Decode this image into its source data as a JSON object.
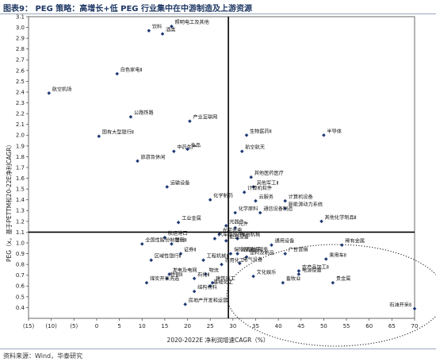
{
  "header": {
    "title": "图表9：  PEG 策略：高增长+低 PEG 行业集中在中游制造及上游资源"
  },
  "footer": {
    "source": "资料来源：Wind，华泰研究"
  },
  "colors": {
    "marker": "#1f3a73",
    "title": "#1f3864",
    "reference_lines": "#000000"
  },
  "chart_data": {
    "type": "scatter",
    "xlabel": "2020-2022E 净利润增速CAGR（%）",
    "ylabel": "PEG（x，基于PETTM和20-22E净利CAGR）",
    "xlim": [
      -15,
      70
    ],
    "ylim": [
      0.3,
      3.1
    ],
    "xticks": [
      "(15)",
      "(10)",
      "(5)",
      "0",
      "5",
      "10",
      "15",
      "20",
      "25",
      "30",
      "35",
      "40",
      "45",
      "50",
      "55",
      "60",
      "65",
      "70"
    ],
    "yticks": [
      "0.4",
      "0.5",
      "0.6",
      "0.7",
      "0.8",
      "0.9",
      "1.0",
      "1.1",
      "1.2",
      "1.3",
      "1.4",
      "1.5",
      "1.6",
      "1.7",
      "1.8",
      "1.9",
      "2.0",
      "2.1",
      "2.2",
      "2.3",
      "2.4",
      "2.5",
      "2.6",
      "2.7",
      "2.8",
      "2.9",
      "3.0",
      "3.1"
    ],
    "reference_lines": {
      "x": 29,
      "y": 1.1
    },
    "annotation": "dotted ellipse around high-growth / low-PEG industries",
    "points": [
      {
        "label": "饮料",
        "x": 11.5,
        "y": 2.97
      },
      {
        "label": "照明电工及其他",
        "x": 16.5,
        "y": 3.01
      },
      {
        "label": "酒类",
        "x": 14.5,
        "y": 2.94
      },
      {
        "label": "白色家电Ⅱ",
        "x": 4.5,
        "y": 2.57
      },
      {
        "label": "航空机场",
        "x": -10.5,
        "y": 2.39
      },
      {
        "label": "公路铁路",
        "x": 7.5,
        "y": 2.17
      },
      {
        "label": "产业互联网",
        "x": 20.5,
        "y": 2.13
      },
      {
        "label": "国有大型银行Ⅱ",
        "x": 0.5,
        "y": 1.99
      },
      {
        "label": "生物医药Ⅱ",
        "x": 33,
        "y": 2.0
      },
      {
        "label": "半导体",
        "x": 50,
        "y": 2.0
      },
      {
        "label": "中药生产",
        "x": 17,
        "y": 1.85
      },
      {
        "label": "食品",
        "x": 20,
        "y": 1.87
      },
      {
        "label": "航空航天",
        "x": 32,
        "y": 1.85
      },
      {
        "label": "旅游及休闲",
        "x": 9,
        "y": 1.76
      },
      {
        "label": "其他医药医疗",
        "x": 34,
        "y": 1.61
      },
      {
        "label": "运输设备",
        "x": 15.5,
        "y": 1.52
      },
      {
        "label": "其他军工Ⅱ",
        "x": 34.5,
        "y": 1.52
      },
      {
        "label": "计算机软件",
        "x": 32.5,
        "y": 1.47
      },
      {
        "label": "化学制药",
        "x": 25,
        "y": 1.4
      },
      {
        "label": "云服务",
        "x": 35,
        "y": 1.39
      },
      {
        "label": "计算机设备",
        "x": 41.5,
        "y": 1.39
      },
      {
        "label": "新能源动力系统",
        "x": 41.5,
        "y": 1.32
      },
      {
        "label": "化学原料",
        "x": 30.5,
        "y": 1.28
      },
      {
        "label": "通信设备制造",
        "x": 36,
        "y": 1.28
      },
      {
        "label": "其他化学制品Ⅱ",
        "x": 49.5,
        "y": 1.2
      },
      {
        "label": "工业金属",
        "x": 18,
        "y": 1.19
      },
      {
        "label": "光器件",
        "x": 28.5,
        "y": 1.16
      },
      {
        "label": "元件",
        "x": 30.5,
        "y": 1.14
      },
      {
        "label": "光学光电",
        "x": 27,
        "y": 1.08
      },
      {
        "label": "航运港口",
        "x": 15,
        "y": 1.05
      },
      {
        "label": "汽车零部件Ⅱ",
        "x": 26,
        "y": 1.04
      },
      {
        "label": "专用机械",
        "x": 31,
        "y": 1.04
      },
      {
        "label": "能源设备",
        "x": 28.5,
        "y": 1.02
      },
      {
        "label": "全国性股份制银行Ⅱ",
        "x": 10,
        "y": 0.99
      },
      {
        "label": "普钢",
        "x": 16.5,
        "y": 0.99
      },
      {
        "label": "通用设备",
        "x": 38.5,
        "y": 0.98
      },
      {
        "label": "稀有金属",
        "x": 54,
        "y": 0.98
      },
      {
        "label": "证券Ⅱ",
        "x": 18.5,
        "y": 0.9
      },
      {
        "label": "保险及其他服务",
        "x": 29.5,
        "y": 0.9
      },
      {
        "label": "消费电子",
        "x": 31,
        "y": 0.9
      },
      {
        "label": "广告营销",
        "x": 41.5,
        "y": 0.9
      },
      {
        "label": "塑料及制品",
        "x": 33,
        "y": 0.87
      },
      {
        "label": "乘用车Ⅱ",
        "x": 50.5,
        "y": 0.85
      },
      {
        "label": "区域性银行Ⅱ",
        "x": 12,
        "y": 0.84
      },
      {
        "label": "工程机械Ⅱ",
        "x": 23.5,
        "y": 0.84
      },
      {
        "label": "电气设备",
        "x": 31.5,
        "y": 0.81
      },
      {
        "label": "农用化工",
        "x": 27.5,
        "y": 0.8
      },
      {
        "label": "发电及电网",
        "x": 16,
        "y": 0.71
      },
      {
        "label": "物流",
        "x": 24,
        "y": 0.71
      },
      {
        "label": "农产品加工Ⅱ",
        "x": 44.5,
        "y": 0.74
      },
      {
        "label": "特钢Ⅱ",
        "x": 15.5,
        "y": 0.67
      },
      {
        "label": "石化Ⅱ",
        "x": 21.5,
        "y": 0.67
      },
      {
        "label": "文化娱乐",
        "x": 34.5,
        "y": 0.69
      },
      {
        "label": "电源设备",
        "x": 44.5,
        "y": 0.71
      },
      {
        "label": "煤炭开采洗选",
        "x": 11,
        "y": 0.63
      },
      {
        "label": "建筑施工",
        "x": 25.5,
        "y": 0.63
      },
      {
        "label": "畜牧业",
        "x": 41,
        "y": 0.63
      },
      {
        "label": "贵金属",
        "x": 52,
        "y": 0.63
      },
      {
        "label": "基础化工",
        "x": 25,
        "y": 0.6
      },
      {
        "label": "结构材料",
        "x": 21.5,
        "y": 0.55
      },
      {
        "label": "房地产开发和运营",
        "x": 19.5,
        "y": 0.43
      },
      {
        "label": "石油开采Ⅱ",
        "x": 70,
        "y": 0.39
      }
    ]
  }
}
